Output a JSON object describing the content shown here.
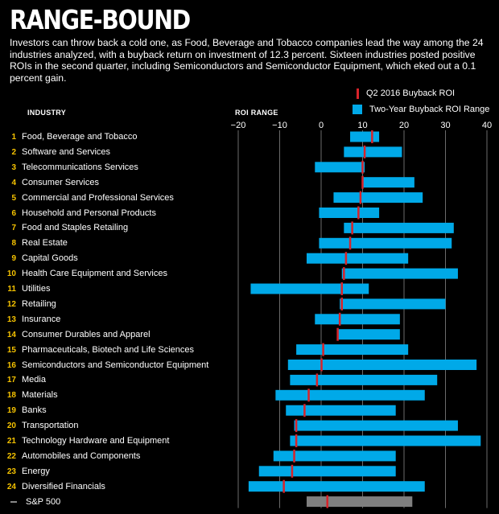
{
  "header": {
    "title": "RANGE-BOUND",
    "subtitle": "Investors can throw back a cold one, as Food, Beverage and Tobacco companies lead the way among the 24 industries analyzed, with a buyback return on investment of 12.3 percent. Sixteen industries posted positive ROIs in the second quarter, including Semiconductors and Semiconductor Equipment, which eked out a 0.1 percent gain."
  },
  "columns": {
    "industry": "INDUSTRY",
    "roi_range": "ROI RANGE"
  },
  "legend": {
    "q2": "Q2 2016 Buyback ROI",
    "range": "Two-Year Buyback ROI Range"
  },
  "colors": {
    "range_bar": "#00a9e8",
    "q2_marker": "#d9232a",
    "sp500_bar": "#7f7f7f",
    "rank_number": "#f6c300",
    "grid": "#6b6b6b"
  },
  "chart_data": {
    "type": "bar",
    "orientation": "horizontal-range",
    "xlim": [
      -20,
      40
    ],
    "x_ticks": [
      "−20",
      "−10",
      "0",
      "10",
      "20",
      "30",
      "40"
    ],
    "grid": true,
    "legend_position": "top-right",
    "rows": [
      {
        "rank": "1",
        "label": "Food, Beverage and Tobacco",
        "low": 7,
        "high": 14,
        "q2": 12.3
      },
      {
        "rank": "2",
        "label": "Software and Services",
        "low": 5.5,
        "high": 19.5,
        "q2": 10.5
      },
      {
        "rank": "3",
        "label": "Telecommunications Services",
        "low": -1.5,
        "high": 10.5,
        "q2": 10
      },
      {
        "rank": "4",
        "label": "Consumer Services",
        "low": 10,
        "high": 22.5,
        "q2": 10
      },
      {
        "rank": "5",
        "label": "Commercial and Professional Services",
        "low": 3,
        "high": 24.5,
        "q2": 9.5
      },
      {
        "rank": "6",
        "label": "Household and Personal Products",
        "low": -0.5,
        "high": 14,
        "q2": 9
      },
      {
        "rank": "7",
        "label": "Food and Staples Retailing",
        "low": 5.5,
        "high": 32,
        "q2": 7.5
      },
      {
        "rank": "8",
        "label": "Real Estate",
        "low": -0.5,
        "high": 31.5,
        "q2": 7
      },
      {
        "rank": "9",
        "label": "Capital Goods",
        "low": -3.5,
        "high": 21,
        "q2": 6
      },
      {
        "rank": "10",
        "label": "Health Care Equipment and Services",
        "low": 5,
        "high": 33,
        "q2": 5.5
      },
      {
        "rank": "11",
        "label": "Utilities",
        "low": -17,
        "high": 11.5,
        "q2": 5
      },
      {
        "rank": "12",
        "label": "Retailing",
        "low": 4.5,
        "high": 30,
        "q2": 5
      },
      {
        "rank": "13",
        "label": "Insurance",
        "low": -1.5,
        "high": 19,
        "q2": 4.5
      },
      {
        "rank": "14",
        "label": "Consumer Durables and Apparel",
        "low": 4,
        "high": 19,
        "q2": 4
      },
      {
        "rank": "15",
        "label": "Pharmaceuticals, Biotech and Life Sciences",
        "low": -6,
        "high": 21,
        "q2": 0.5
      },
      {
        "rank": "16",
        "label": "Semiconductors and Semiconductor Equipment",
        "low": -8,
        "high": 37.5,
        "q2": 0.1
      },
      {
        "rank": "17",
        "label": "Media",
        "low": -7.5,
        "high": 28,
        "q2": -1
      },
      {
        "rank": "18",
        "label": "Materials",
        "low": -11,
        "high": 25,
        "q2": -3
      },
      {
        "rank": "19",
        "label": "Banks",
        "low": -8.5,
        "high": 18,
        "q2": -4
      },
      {
        "rank": "20",
        "label": "Transportation",
        "low": -6.5,
        "high": 33,
        "q2": -6
      },
      {
        "rank": "21",
        "label": "Technology Hardware and Equipment",
        "low": -7.5,
        "high": 38.5,
        "q2": -6
      },
      {
        "rank": "22",
        "label": "Automobiles and Components",
        "low": -11.5,
        "high": 18,
        "q2": -6.5
      },
      {
        "rank": "23",
        "label": "Energy",
        "low": -15,
        "high": 18,
        "q2": -7
      },
      {
        "rank": "24",
        "label": "Diversified Financials",
        "low": -17.5,
        "high": 25,
        "q2": -9
      }
    ],
    "benchmark": {
      "label": "S&P 500",
      "low": -3.5,
      "high": 22,
      "q2": 1.5
    }
  }
}
